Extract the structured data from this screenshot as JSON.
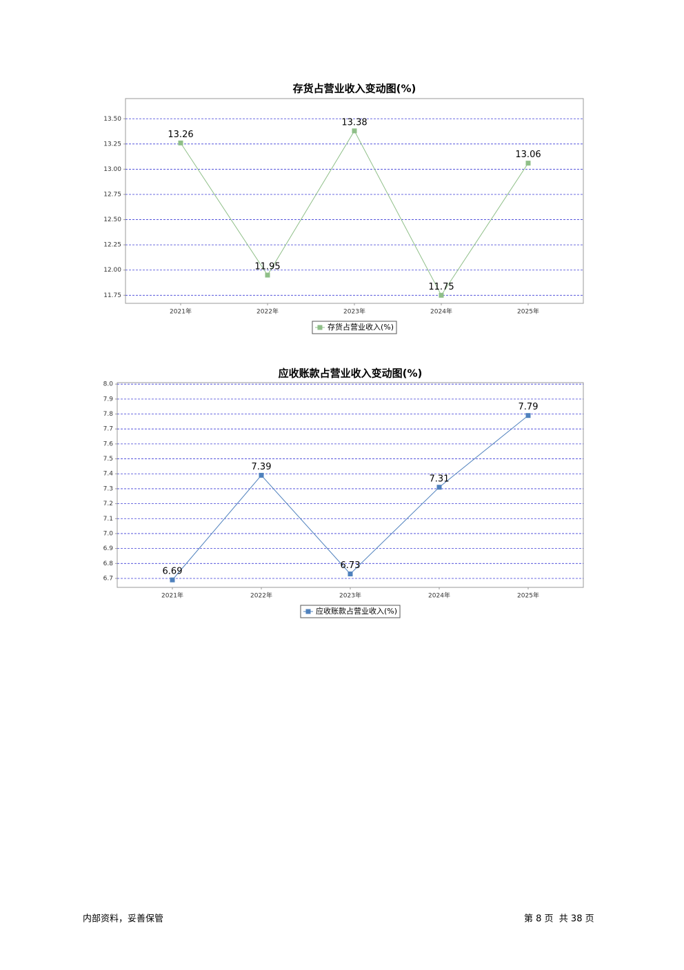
{
  "chart_data": [
    {
      "type": "line",
      "title": "存货占营业收入变动图(%)",
      "categories": [
        "2021年",
        "2022年",
        "2023年",
        "2024年",
        "2025年"
      ],
      "series": [
        {
          "name": "存货占营业收入(%)",
          "color": "#8fbf88",
          "values": [
            13.26,
            11.95,
            13.38,
            11.75,
            13.06
          ]
        }
      ],
      "ylim": [
        11.67,
        13.7
      ],
      "yticks": [
        {
          "value": 13.5,
          "label": "13.50"
        },
        13.25,
        {
          "value": 13,
          "label": "13.00"
        },
        12.75,
        {
          "value": 12.5,
          "label": "12.50"
        },
        12.25,
        {
          "value": 12,
          "label": "12.00"
        },
        11.75
      ],
      "grid": true,
      "legend": "bottom"
    },
    {
      "type": "line",
      "title": "应收账款占营业收入变动图(%)",
      "categories": [
        "2021年",
        "2022年",
        "2023年",
        "2024年",
        "2025年"
      ],
      "series": [
        {
          "name": "应收账款占营业收入(%)",
          "color": "#4f81bd",
          "values": [
            6.69,
            7.39,
            6.73,
            7.31,
            7.79
          ]
        }
      ],
      "ylim": [
        6.64,
        8.01
      ],
      "yticks": [
        {
          "value": 8,
          "label": "8.0"
        },
        7.9,
        7.8,
        7.7,
        7.6,
        7.5,
        7.4,
        7.3,
        7.2,
        7.1,
        {
          "value": 7,
          "label": "7.0"
        },
        6.9,
        6.8,
        6.7
      ],
      "grid": true,
      "legend": "bottom"
    }
  ],
  "footer": {
    "left": "内部资料，妥善保管",
    "right": "第 8 页  共 38 页"
  }
}
